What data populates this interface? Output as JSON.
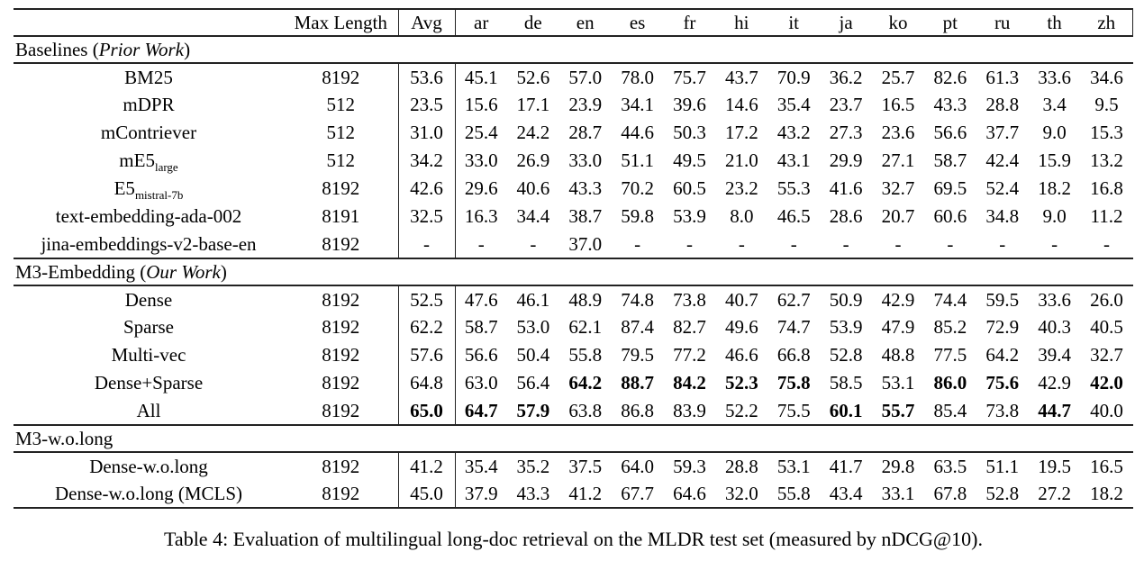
{
  "caption": "Table 4: Evaluation of multilingual long-doc retrieval on the MLDR test set (measured by nDCG@10).",
  "colors": {
    "rule": "#222222",
    "text": "#000000",
    "background": "#ffffff"
  },
  "table": {
    "columns": [
      "",
      "Max Length",
      "Avg",
      "ar",
      "de",
      "en",
      "es",
      "fr",
      "hi",
      "it",
      "ja",
      "ko",
      "pt",
      "ru",
      "th",
      "zh"
    ],
    "sections": [
      {
        "header": {
          "prefix": "Baselines (",
          "italic": "Prior Work",
          "suffix": ")"
        },
        "rows": [
          {
            "label": "BM25",
            "sub": "",
            "max_length": "8192",
            "values": [
              "53.6",
              "45.1",
              "52.6",
              "57.0",
              "78.0",
              "75.7",
              "43.7",
              "70.9",
              "36.2",
              "25.7",
              "82.6",
              "61.3",
              "33.6",
              "34.6"
            ],
            "bold": []
          },
          {
            "label": "mDPR",
            "sub": "",
            "max_length": "512",
            "values": [
              "23.5",
              "15.6",
              "17.1",
              "23.9",
              "34.1",
              "39.6",
              "14.6",
              "35.4",
              "23.7",
              "16.5",
              "43.3",
              "28.8",
              "3.4",
              "9.5"
            ],
            "bold": []
          },
          {
            "label": "mContriever",
            "sub": "",
            "max_length": "512",
            "values": [
              "31.0",
              "25.4",
              "24.2",
              "28.7",
              "44.6",
              "50.3",
              "17.2",
              "43.2",
              "27.3",
              "23.6",
              "56.6",
              "37.7",
              "9.0",
              "15.3"
            ],
            "bold": []
          },
          {
            "label": "mE5",
            "sub": "large",
            "max_length": "512",
            "values": [
              "34.2",
              "33.0",
              "26.9",
              "33.0",
              "51.1",
              "49.5",
              "21.0",
              "43.1",
              "29.9",
              "27.1",
              "58.7",
              "42.4",
              "15.9",
              "13.2"
            ],
            "bold": []
          },
          {
            "label": "E5",
            "sub": "mistral-7b",
            "max_length": "8192",
            "values": [
              "42.6",
              "29.6",
              "40.6",
              "43.3",
              "70.2",
              "60.5",
              "23.2",
              "55.3",
              "41.6",
              "32.7",
              "69.5",
              "52.4",
              "18.2",
              "16.8"
            ],
            "bold": []
          },
          {
            "label": "text-embedding-ada-002",
            "sub": "",
            "max_length": "8191",
            "values": [
              "32.5",
              "16.3",
              "34.4",
              "38.7",
              "59.8",
              "53.9",
              "8.0",
              "46.5",
              "28.6",
              "20.7",
              "60.6",
              "34.8",
              "9.0",
              "11.2"
            ],
            "bold": []
          },
          {
            "label": "jina-embeddings-v2-base-en",
            "sub": "",
            "max_length": "8192",
            "values": [
              "-",
              "-",
              "-",
              "37.0",
              "-",
              "-",
              "-",
              "-",
              "-",
              "-",
              "-",
              "-",
              "-",
              "-"
            ],
            "bold": []
          }
        ]
      },
      {
        "header": {
          "prefix": "M3-Embedding (",
          "italic": "Our Work",
          "suffix": ")"
        },
        "rows": [
          {
            "label": "Dense",
            "sub": "",
            "max_length": "8192",
            "values": [
              "52.5",
              "47.6",
              "46.1",
              "48.9",
              "74.8",
              "73.8",
              "40.7",
              "62.7",
              "50.9",
              "42.9",
              "74.4",
              "59.5",
              "33.6",
              "26.0"
            ],
            "bold": []
          },
          {
            "label": "Sparse",
            "sub": "",
            "max_length": "8192",
            "values": [
              "62.2",
              "58.7",
              "53.0",
              "62.1",
              "87.4",
              "82.7",
              "49.6",
              "74.7",
              "53.9",
              "47.9",
              "85.2",
              "72.9",
              "40.3",
              "40.5"
            ],
            "bold": []
          },
          {
            "label": "Multi-vec",
            "sub": "",
            "max_length": "8192",
            "values": [
              "57.6",
              "56.6",
              "50.4",
              "55.8",
              "79.5",
              "77.2",
              "46.6",
              "66.8",
              "52.8",
              "48.8",
              "77.5",
              "64.2",
              "39.4",
              "32.7"
            ],
            "bold": []
          },
          {
            "label": "Dense+Sparse",
            "sub": "",
            "max_length": "8192",
            "values": [
              "64.8",
              "63.0",
              "56.4",
              "64.2",
              "88.7",
              "84.2",
              "52.3",
              "75.8",
              "58.5",
              "53.1",
              "86.0",
              "75.6",
              "42.9",
              "42.0"
            ],
            "bold": [
              3,
              4,
              5,
              6,
              7,
              10,
              11,
              13
            ]
          },
          {
            "label": "All",
            "sub": "",
            "max_length": "8192",
            "values": [
              "65.0",
              "64.7",
              "57.9",
              "63.8",
              "86.8",
              "83.9",
              "52.2",
              "75.5",
              "60.1",
              "55.7",
              "85.4",
              "73.8",
              "44.7",
              "40.0"
            ],
            "bold": [
              0,
              1,
              2,
              8,
              9,
              12
            ]
          }
        ]
      },
      {
        "header": {
          "prefix": "M3-w.o.long",
          "italic": "",
          "suffix": ""
        },
        "rows": [
          {
            "label": "Dense-w.o.long",
            "sub": "",
            "max_length": "8192",
            "values": [
              "41.2",
              "35.4",
              "35.2",
              "37.5",
              "64.0",
              "59.3",
              "28.8",
              "53.1",
              "41.7",
              "29.8",
              "63.5",
              "51.1",
              "19.5",
              "16.5"
            ],
            "bold": []
          },
          {
            "label": "Dense-w.o.long (MCLS)",
            "sub": "",
            "max_length": "8192",
            "values": [
              "45.0",
              "37.9",
              "43.3",
              "41.2",
              "67.7",
              "64.6",
              "32.0",
              "55.8",
              "43.4",
              "33.1",
              "67.8",
              "52.8",
              "27.2",
              "18.2"
            ],
            "bold": []
          }
        ]
      }
    ]
  }
}
